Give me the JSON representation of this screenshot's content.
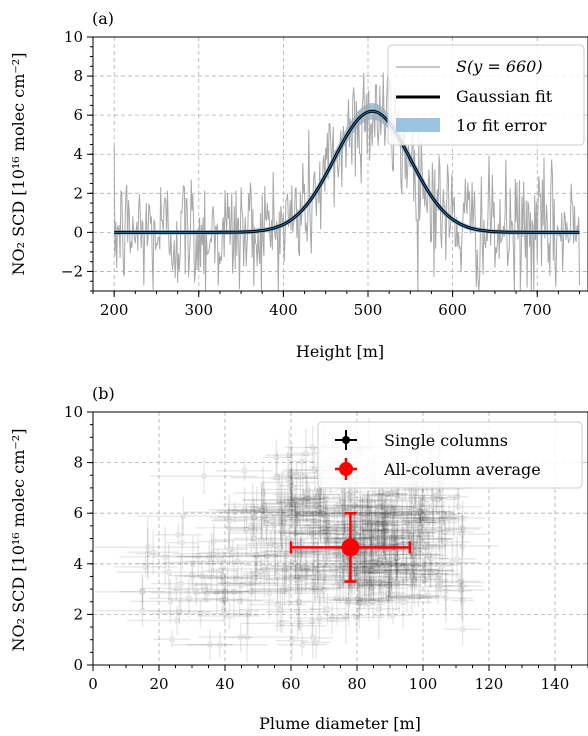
{
  "chart_data": [
    {
      "type": "line",
      "panel_label": "(a)",
      "xlabel": "Height [m]",
      "ylabel": "NO₂ SCD [10¹⁶ molec cm⁻²]",
      "xlim": [
        175,
        760
      ],
      "ylim": [
        -3,
        10
      ],
      "xticks": [
        200,
        300,
        400,
        500,
        600,
        700
      ],
      "yticks": [
        -2,
        0,
        2,
        4,
        6,
        8,
        10
      ],
      "grid": true,
      "legend_position": "top-right",
      "legend": [
        "S(y = 660)",
        "Gaussian fit",
        "1σ fit error"
      ],
      "series": [
        {
          "name": "S(y = 660)",
          "kind": "noisy-signal",
          "color": "#a8a8a8",
          "x_range": [
            200,
            750
          ],
          "noise_std": 1.6,
          "amplitude": 6.2,
          "center": 505,
          "sigma": 45
        },
        {
          "name": "Gaussian fit",
          "kind": "gaussian",
          "color": "#000000",
          "amplitude": 6.2,
          "center": 505,
          "sigma": 45,
          "baseline": 0
        },
        {
          "name": "1σ fit error",
          "kind": "band",
          "color": "#9cc3e0",
          "amplitude_error": 0.3
        }
      ]
    },
    {
      "type": "scatter",
      "panel_label": "(b)",
      "xlabel": "Plume diameter [m]",
      "ylabel": "NO₂ SCD [10¹⁶ molec cm⁻²]",
      "xlim": [
        0,
        150
      ],
      "ylim": [
        0,
        10
      ],
      "xticks": [
        0,
        20,
        40,
        60,
        80,
        100,
        120,
        140
      ],
      "yticks": [
        0,
        2,
        4,
        6,
        8,
        10
      ],
      "grid": true,
      "legend_position": "top-right",
      "legend": [
        "Single columns",
        "All-column average"
      ],
      "series": [
        {
          "name": "Single columns",
          "kind": "cloud-with-errorbars",
          "color": "#000000",
          "count": 550
        },
        {
          "name": "All-column average",
          "color": "#ff0000",
          "x": 78,
          "y": 4.65,
          "xerr": 18,
          "yerr": 1.35
        }
      ]
    }
  ]
}
